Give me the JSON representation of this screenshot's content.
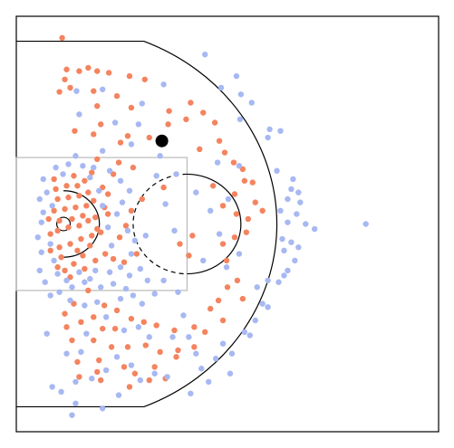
{
  "chart_data": {
    "type": "scatter",
    "title": "",
    "xlabel": "",
    "ylabel": "",
    "xlim": [
      0,
      47
    ],
    "ylim": [
      -25,
      25
    ],
    "grid": false,
    "legend": "none",
    "court": {
      "basket": [
        5.25,
        0
      ],
      "basket_radius": 0.75,
      "lane_length": 19,
      "lane_half_width": 8,
      "free_throw_circle_radius": 6,
      "restricted_area_radius": 4,
      "three_point_radius": 23.75,
      "corner_three_y": 22,
      "line_color": "#000000",
      "lane_color": "#bbbbbb"
    },
    "marker": {
      "position": [
        16.2,
        10
      ],
      "color": "#000000"
    },
    "series": [
      {
        "color": "#f4845f",
        "points": [
          [
            5.1,
            22.4
          ],
          [
            5.6,
            18.6
          ],
          [
            5.4,
            17.4
          ],
          [
            7.0,
            18.4
          ],
          [
            8.0,
            18.8
          ],
          [
            9.0,
            18.4
          ],
          [
            10.3,
            18.2
          ],
          [
            12.6,
            17.8
          ],
          [
            14.3,
            17.4
          ],
          [
            6.0,
            16.4
          ],
          [
            8.6,
            16.0
          ],
          [
            11.2,
            15.4
          ],
          [
            4.8,
            15.9
          ],
          [
            9.0,
            14.2
          ],
          [
            12.8,
            14.0
          ],
          [
            17.0,
            13.6
          ],
          [
            19.4,
            14.6
          ],
          [
            18.9,
            12.6
          ],
          [
            20.8,
            13.4
          ],
          [
            22.1,
            12.2
          ],
          [
            16.9,
            12.0
          ],
          [
            9.4,
            12.0
          ],
          [
            6.5,
            11.2
          ],
          [
            8.6,
            10.8
          ],
          [
            12.4,
            10.6
          ],
          [
            14.8,
            10.4
          ],
          [
            11.6,
            9.8
          ],
          [
            22.6,
            10.0
          ],
          [
            23.2,
            8.6
          ],
          [
            20.4,
            9.0
          ],
          [
            24.2,
            7.4
          ],
          [
            25.2,
            6.6
          ],
          [
            25.4,
            5.2
          ],
          [
            26.3,
            5.0
          ],
          [
            13.0,
            6.8
          ],
          [
            16.4,
            4.4
          ],
          [
            21.9,
            4.6
          ],
          [
            24.3,
            3.6
          ],
          [
            26.6,
            2.6
          ],
          [
            27.4,
            1.6
          ],
          [
            23.0,
            2.2
          ],
          [
            24.5,
            1.2
          ],
          [
            25.8,
            0.6
          ],
          [
            14.0,
            3.0
          ],
          [
            12.8,
            1.6
          ],
          [
            12.2,
            -0.2
          ],
          [
            11.5,
            -1.6
          ],
          [
            9.9,
            -3.6
          ],
          [
            10.8,
            -4.2
          ],
          [
            12.0,
            -4.6
          ],
          [
            13.4,
            -3.6
          ],
          [
            19.6,
            -1.4
          ],
          [
            18.2,
            -2.4
          ],
          [
            19.2,
            -3.8
          ],
          [
            23.0,
            -2.4
          ],
          [
            24.3,
            -1.6
          ],
          [
            25.6,
            -1.0
          ],
          [
            23.4,
            -4.4
          ],
          [
            24.6,
            -6.8
          ],
          [
            23.5,
            -7.6
          ],
          [
            25.2,
            -9.0
          ],
          [
            22.5,
            -9.2
          ],
          [
            21.6,
            -10.2
          ],
          [
            23.0,
            -11.6
          ],
          [
            8.0,
            -8.0
          ],
          [
            6.4,
            -9.6
          ],
          [
            9.8,
            -9.8
          ],
          [
            11.2,
            -10.4
          ],
          [
            5.4,
            -10.8
          ],
          [
            5.6,
            -12.4
          ],
          [
            7.2,
            -11.8
          ],
          [
            8.6,
            -11.2
          ],
          [
            9.6,
            -12.6
          ],
          [
            11.0,
            -12.6
          ],
          [
            12.8,
            -11.4
          ],
          [
            14.2,
            -11.8
          ],
          [
            15.6,
            -12.2
          ],
          [
            17.6,
            -12.8
          ],
          [
            19.8,
            -12.4
          ],
          [
            21.0,
            -13.0
          ],
          [
            6.2,
            -14.0
          ],
          [
            8.6,
            -14.0
          ],
          [
            10.6,
            -14.8
          ],
          [
            12.4,
            -14.8
          ],
          [
            14.4,
            -14.6
          ],
          [
            16.0,
            -15.4
          ],
          [
            18.0,
            -15.2
          ],
          [
            19.8,
            -14.8
          ],
          [
            6.8,
            -16.6
          ],
          [
            9.2,
            -16.4
          ],
          [
            12.0,
            -17.2
          ],
          [
            15.4,
            -17.2
          ],
          [
            17.8,
            -16.0
          ],
          [
            7.0,
            -18.4
          ],
          [
            9.4,
            -18.8
          ],
          [
            13.2,
            -18.0
          ],
          [
            14.8,
            -18.8
          ],
          [
            16.6,
            -18.6
          ],
          [
            12.6,
            -19.6
          ],
          [
            9.0,
            -17.8
          ],
          [
            4.6,
            -5.2
          ],
          [
            5.4,
            -5.6
          ],
          [
            6.4,
            -4.8
          ],
          [
            7.4,
            -3.8
          ],
          [
            8.2,
            -2.6
          ],
          [
            4.8,
            -2.8
          ],
          [
            6.0,
            -2.4
          ],
          [
            7.2,
            -1.8
          ],
          [
            8.4,
            -1.4
          ],
          [
            9.0,
            -0.6
          ],
          [
            3.8,
            -1.2
          ],
          [
            4.6,
            -0.8
          ],
          [
            5.8,
            -0.4
          ],
          [
            7.0,
            -0.2
          ],
          [
            8.0,
            0.4
          ],
          [
            8.8,
            0.8
          ],
          [
            3.6,
            0.6
          ],
          [
            4.8,
            0.4
          ],
          [
            6.2,
            0.6
          ],
          [
            7.4,
            1.0
          ],
          [
            4.2,
            1.6
          ],
          [
            5.4,
            1.8
          ],
          [
            6.6,
            2.0
          ],
          [
            7.8,
            2.2
          ],
          [
            8.6,
            2.8
          ],
          [
            4.6,
            3.0
          ],
          [
            5.8,
            3.2
          ],
          [
            7.0,
            3.4
          ],
          [
            8.0,
            3.8
          ],
          [
            4.4,
            4.2
          ],
          [
            5.6,
            4.6
          ],
          [
            6.8,
            4.6
          ],
          [
            7.6,
            5.2
          ],
          [
            9.6,
            4.4
          ],
          [
            9.8,
            2.0
          ],
          [
            6.4,
            5.8
          ],
          [
            5.0,
            -4.0
          ],
          [
            6.8,
            -3.2
          ],
          [
            8.8,
            -4.4
          ],
          [
            7.6,
            -5.4
          ],
          [
            9.4,
            -1.0
          ],
          [
            10.2,
            1.2
          ],
          [
            3.8,
            -3.2
          ],
          [
            6.0,
            -6.4
          ],
          [
            4.2,
            5.4
          ],
          [
            8.4,
            6.2
          ],
          [
            10.8,
            6.0
          ],
          [
            11.4,
            7.4
          ],
          [
            9.0,
            7.8
          ],
          [
            10.2,
            3.6
          ]
        ]
      },
      {
        "color": "#a7b8f2",
        "points": [
          [
            21.0,
            20.4
          ],
          [
            24.5,
            17.8
          ],
          [
            22.8,
            16.4
          ],
          [
            16.4,
            16.8
          ],
          [
            9.6,
            16.2
          ],
          [
            6.7,
            16.0
          ],
          [
            25.0,
            15.6
          ],
          [
            26.2,
            14.6
          ],
          [
            14.0,
            14.5
          ],
          [
            7.0,
            13.2
          ],
          [
            11.0,
            12.2
          ],
          [
            24.9,
            12.6
          ],
          [
            28.2,
            11.4
          ],
          [
            29.4,
            11.2
          ],
          [
            28.0,
            10.4
          ],
          [
            12.8,
            9.6
          ],
          [
            9.6,
            8.8
          ],
          [
            6.6,
            8.2
          ],
          [
            22.4,
            7.4
          ],
          [
            24.8,
            7.0
          ],
          [
            29.0,
            6.4
          ],
          [
            30.8,
            5.4
          ],
          [
            30.6,
            4.2
          ],
          [
            31.4,
            3.8
          ],
          [
            31.6,
            2.6
          ],
          [
            30.2,
            3.0
          ],
          [
            29.4,
            1.6
          ],
          [
            31.2,
            1.2
          ],
          [
            30.2,
            0.2
          ],
          [
            32.2,
            0.0
          ],
          [
            33.2,
            -0.6
          ],
          [
            38.9,
            0.0
          ],
          [
            29.6,
            -1.8
          ],
          [
            30.6,
            -2.2
          ],
          [
            31.4,
            -2.8
          ],
          [
            29.8,
            -3.2
          ],
          [
            31.0,
            -4.4
          ],
          [
            30.2,
            -5.6
          ],
          [
            29.8,
            -6.2
          ],
          [
            28.0,
            -6.8
          ],
          [
            29.2,
            -7.0
          ],
          [
            26.8,
            -7.6
          ],
          [
            27.4,
            -9.6
          ],
          [
            28.0,
            -10.0
          ],
          [
            26.6,
            -11.6
          ],
          [
            26.0,
            -13.4
          ],
          [
            25.4,
            -13.0
          ],
          [
            24.0,
            -15.6
          ],
          [
            23.0,
            -14.4
          ],
          [
            22.2,
            -16.2
          ],
          [
            20.6,
            -17.4
          ],
          [
            20.0,
            -15.6
          ],
          [
            21.4,
            -19.0
          ],
          [
            23.8,
            -18.0
          ],
          [
            19.4,
            -20.4
          ],
          [
            16.8,
            -18.4
          ],
          [
            15.4,
            -18.0
          ],
          [
            13.8,
            -18.8
          ],
          [
            12.8,
            -17.0
          ],
          [
            11.2,
            -16.0
          ],
          [
            10.0,
            -17.6
          ],
          [
            8.4,
            -18.6
          ],
          [
            6.6,
            -19.0
          ],
          [
            5.0,
            -20.2
          ],
          [
            4.0,
            -19.6
          ],
          [
            6.6,
            -21.6
          ],
          [
            9.6,
            -22.2
          ],
          [
            11.4,
            -20.6
          ],
          [
            6.2,
            -23.0
          ],
          [
            3.4,
            -13.2
          ],
          [
            5.6,
            -15.6
          ],
          [
            13.6,
            -12.4
          ],
          [
            14.8,
            -13.6
          ],
          [
            17.4,
            -13.6
          ],
          [
            19.2,
            -13.6
          ],
          [
            18.6,
            -11.0
          ],
          [
            8.8,
            -5.6
          ],
          [
            10.4,
            -5.8
          ],
          [
            11.6,
            -5.2
          ],
          [
            12.6,
            -6.2
          ],
          [
            10.8,
            -7.2
          ],
          [
            12.2,
            -7.8
          ],
          [
            13.8,
            -5.4
          ],
          [
            7.6,
            -7.0
          ],
          [
            6.2,
            -7.6
          ],
          [
            4.8,
            -8.2
          ],
          [
            3.2,
            -7.0
          ],
          [
            2.6,
            -5.6
          ],
          [
            2.8,
            -3.4
          ],
          [
            2.4,
            -1.6
          ],
          [
            2.8,
            0.2
          ],
          [
            3.0,
            1.4
          ],
          [
            2.6,
            3.0
          ],
          [
            3.4,
            3.8
          ],
          [
            3.0,
            5.4
          ],
          [
            4.4,
            6.8
          ],
          [
            5.8,
            7.2
          ],
          [
            7.4,
            7.0
          ],
          [
            8.6,
            6.8
          ],
          [
            10.4,
            6.4
          ],
          [
            11.6,
            5.2
          ],
          [
            12.6,
            4.0
          ],
          [
            11.8,
            2.6
          ],
          [
            11.2,
            1.2
          ],
          [
            12.4,
            -0.8
          ],
          [
            13.2,
            -2.0
          ],
          [
            14.4,
            -1.4
          ],
          [
            12.8,
            -3.6
          ],
          [
            10.6,
            -2.6
          ],
          [
            10.2,
            -0.4
          ],
          [
            9.6,
            2.2
          ],
          [
            9.2,
            4.0
          ],
          [
            8.2,
            5.6
          ],
          [
            5.2,
            6.0
          ],
          [
            4.0,
            2.2
          ],
          [
            3.8,
            -2.4
          ],
          [
            4.2,
            -4.4
          ],
          [
            5.6,
            -6.8
          ],
          [
            7.0,
            -5.8
          ],
          [
            8.2,
            -6.6
          ],
          [
            9.4,
            -7.6
          ],
          [
            11.6,
            -9.0
          ],
          [
            14.0,
            -9.6
          ],
          [
            15.4,
            -8.4
          ],
          [
            16.4,
            -6.8
          ],
          [
            14.6,
            -6.8
          ],
          [
            13.0,
            -8.6
          ],
          [
            9.0,
            -9.4
          ],
          [
            7.6,
            -9.8
          ],
          [
            6.0,
            -9.2
          ],
          [
            4.6,
            -6.0
          ],
          [
            3.8,
            -8.6
          ],
          [
            10.0,
            -11.2
          ],
          [
            12.0,
            -12.8
          ],
          [
            7.8,
            -13.2
          ],
          [
            7.2,
            -15.4
          ],
          [
            18.0,
            -8.2
          ],
          [
            23.4,
            -5.2
          ],
          [
            22.6,
            -1.2
          ],
          [
            21.6,
            1.6
          ],
          [
            20.0,
            3.8
          ],
          [
            17.8,
            6.0
          ],
          [
            15.6,
            5.8
          ],
          [
            16.6,
            2.4
          ],
          [
            17.6,
            -0.8
          ],
          [
            20.8,
            -4.4
          ],
          [
            23.6,
            3.0
          ],
          [
            24.8,
            -3.6
          ],
          [
            13.6,
            12.0
          ],
          [
            16.0,
            8.2
          ]
        ]
      }
    ]
  }
}
